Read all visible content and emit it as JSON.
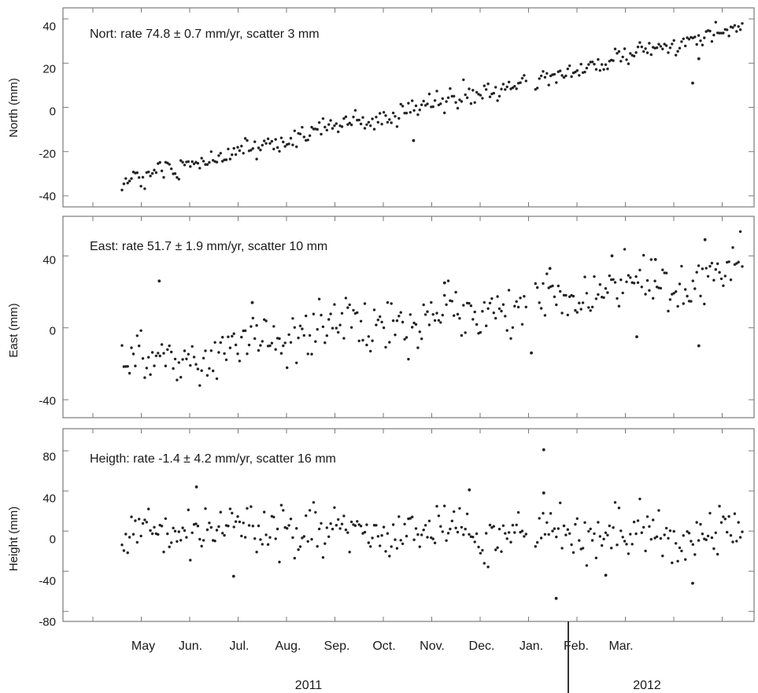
{
  "chart_data": [
    {
      "type": "scatter",
      "annotation": "Nort: rate 74.8 ± 0.7 mm/yr, scatter 3 mm",
      "ylabel": "North (mm)",
      "ylim": [
        -45,
        45
      ],
      "yticks": [
        "40",
        "20",
        "0",
        "-20",
        "-40"
      ],
      "ytick_values": [
        40,
        20,
        0,
        -20,
        -40
      ],
      "trend": {
        "start": -33,
        "end": 36,
        "noise": 3
      },
      "outliers": [
        {
          "t": 0.92,
          "v": 11
        },
        {
          "t": 0.93,
          "v": 22
        },
        {
          "t": 0.47,
          "v": -15
        }
      ],
      "grid": false
    },
    {
      "type": "scatter",
      "annotation": "East: rate 51.7 ± 1.9 mm/yr, scatter 10 mm",
      "ylabel": "East (mm)",
      "ylim": [
        -50,
        62
      ],
      "yticks": [
        "40",
        "0",
        "-40"
      ],
      "ytick_values": [
        40,
        0,
        -40
      ],
      "trend": {
        "start": -20,
        "end": 33,
        "noise": 10
      },
      "outliers": [
        {
          "t": 0.06,
          "v": 26
        },
        {
          "t": 0.21,
          "v": 14
        },
        {
          "t": 0.52,
          "v": 25
        },
        {
          "t": 0.69,
          "v": 33
        },
        {
          "t": 0.66,
          "v": -14
        },
        {
          "t": 0.79,
          "v": 40
        },
        {
          "t": 0.86,
          "v": 38
        },
        {
          "t": 0.94,
          "v": 49
        },
        {
          "t": 0.93,
          "v": -10
        },
        {
          "t": 0.83,
          "v": -5
        }
      ],
      "grid": false
    },
    {
      "type": "scatter",
      "annotation": "Heigth: rate -1.4 ± 4.2 mm/yr, scatter 16 mm",
      "ylabel": "Height (mm)",
      "ylim": [
        -90,
        102
      ],
      "yticks": [
        "80",
        "40",
        "0",
        "-40",
        "-80"
      ],
      "ytick_values": [
        80,
        40,
        0,
        -40,
        -80
      ],
      "trend": {
        "start": 0,
        "end": -3,
        "noise": 16
      },
      "outliers": [
        {
          "t": 0.68,
          "v": 81
        },
        {
          "t": 0.7,
          "v": -67
        },
        {
          "t": 0.12,
          "v": 44
        },
        {
          "t": 0.18,
          "v": -45
        },
        {
          "t": 0.56,
          "v": 41
        },
        {
          "t": 0.68,
          "v": 38
        },
        {
          "t": 0.92,
          "v": -52
        },
        {
          "t": 0.78,
          "v": -44
        }
      ],
      "grid": false
    }
  ],
  "x_axis": {
    "months": [
      "May",
      "Jun.",
      "Jul.",
      "Aug.",
      "Sep.",
      "Oct.",
      "Nov.",
      "Dec.",
      "Jan.",
      "Feb.",
      "Mar."
    ],
    "years": [
      "2011",
      "2012"
    ],
    "data_range": [
      "2011-04-28",
      "2012-03-20"
    ],
    "gap": [
      "2011-11-28",
      "2011-12-01"
    ]
  }
}
